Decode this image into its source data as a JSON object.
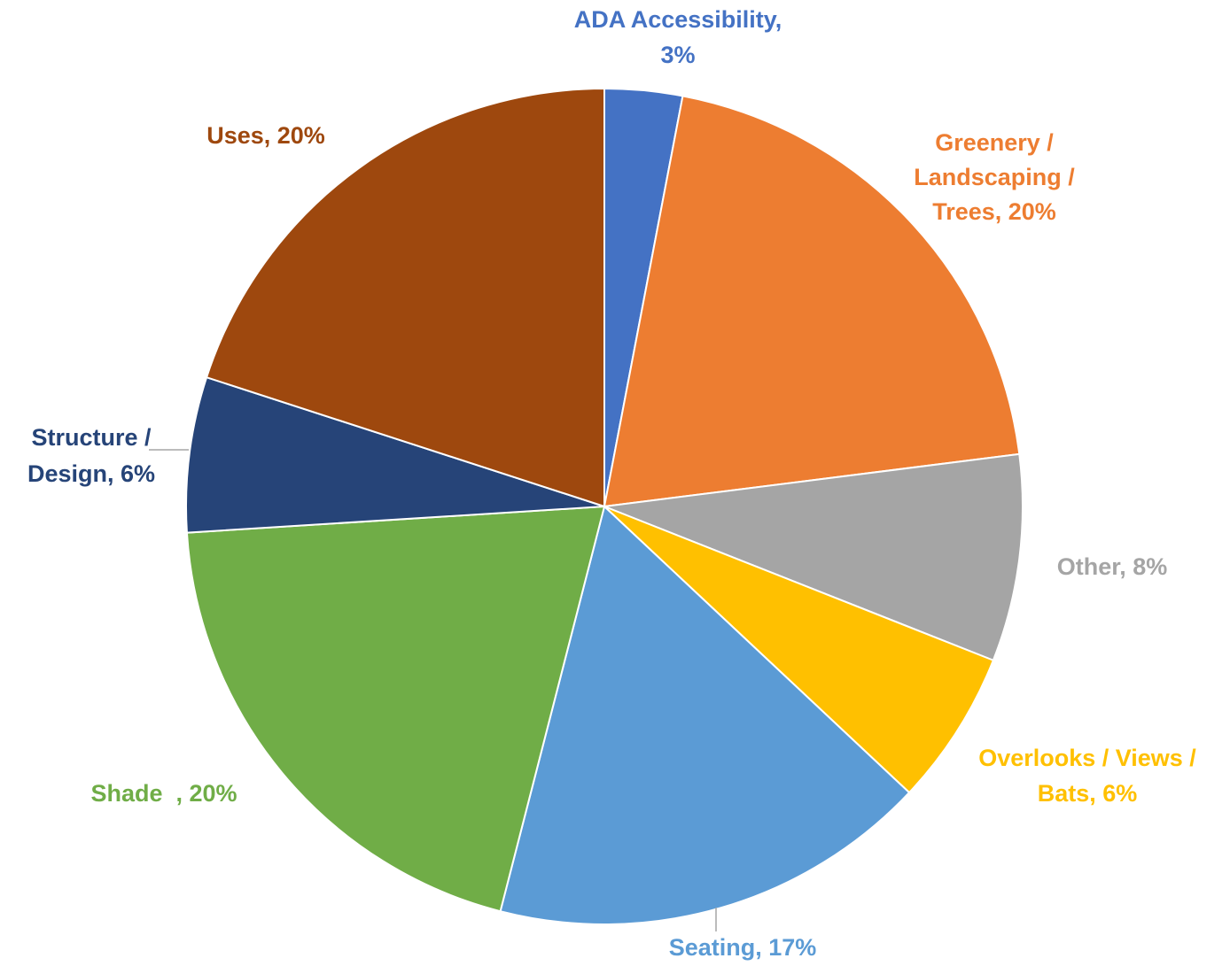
{
  "chart_data": {
    "type": "pie",
    "labels": [
      [
        "ADA Accessibility,",
        "3%"
      ],
      [
        "Greenery /",
        "Landscaping /",
        "Trees, 20%"
      ],
      [
        "Other, 8%"
      ],
      [
        "Overlooks / Views /",
        "Bats, 6%"
      ],
      [
        "Seating, 17%"
      ],
      [
        "Shade  , 20%"
      ],
      [
        "Structure /",
        "Design, 6%"
      ],
      [
        "Uses, 20%"
      ]
    ],
    "values": [
      3,
      20,
      8,
      6,
      17,
      20,
      6,
      20
    ],
    "colors": [
      "#4472c4",
      "#ed7d31",
      "#a5a5a5",
      "#ffc000",
      "#5b9bd5",
      "#70ad47",
      "#264478",
      "#9e480e"
    ]
  }
}
